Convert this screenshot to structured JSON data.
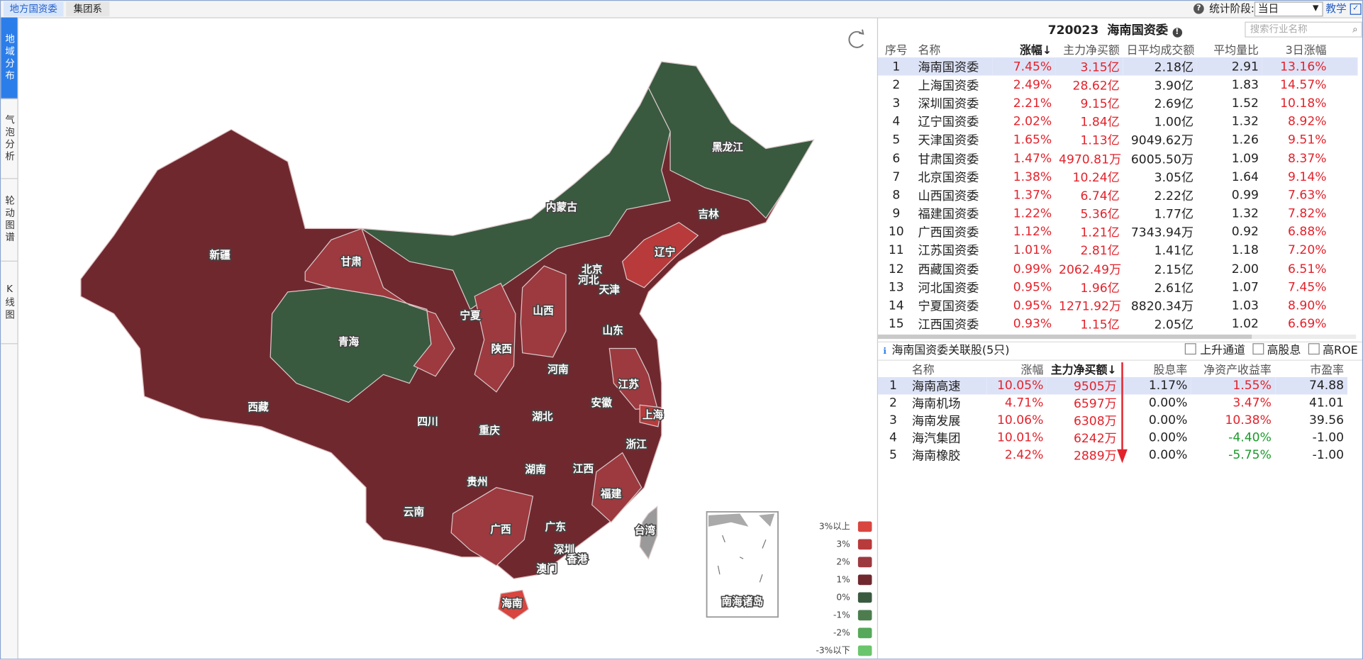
{
  "top_tabs": [
    "地方国资委",
    "集团系"
  ],
  "side_tabs": [
    "地域分布",
    "气泡分析",
    "轮动图谱",
    "K线图"
  ],
  "toolbar": {
    "stat_label": "统计阶段:",
    "stat_value": "当日",
    "teach": "教学"
  },
  "map": {
    "regions": [
      {
        "name": "新疆",
        "color": "#70282f"
      },
      {
        "name": "西藏",
        "color": "#70282f"
      },
      {
        "name": "青海",
        "color": "#3a5a40"
      },
      {
        "name": "甘肃",
        "color": "#9c3a3f"
      },
      {
        "name": "内蒙古",
        "color": "#3a5a40"
      },
      {
        "name": "黑龙江",
        "color": "#3a5a40"
      },
      {
        "name": "吉林",
        "color": "#70282f"
      },
      {
        "name": "辽宁",
        "color": "#b83a3b"
      },
      {
        "name": "北京",
        "color": "#70282f"
      },
      {
        "name": "天津",
        "color": "#70282f"
      },
      {
        "name": "河北",
        "color": "#70282f"
      },
      {
        "name": "山西",
        "color": "#9c3a3f"
      },
      {
        "name": "宁夏",
        "color": "#70282f"
      },
      {
        "name": "陕西",
        "color": "#9c3a3f"
      },
      {
        "name": "山东",
        "color": "#70282f"
      },
      {
        "name": "河南",
        "color": "#70282f"
      },
      {
        "name": "江苏",
        "color": "#9c3a3f"
      },
      {
        "name": "安徽",
        "color": "#70282f"
      },
      {
        "name": "上海",
        "color": "#b83a3b"
      },
      {
        "name": "四川",
        "color": "#70282f"
      },
      {
        "name": "重庆",
        "color": "#70282f"
      },
      {
        "name": "湖北",
        "color": "#70282f"
      },
      {
        "name": "浙江",
        "color": "#70282f"
      },
      {
        "name": "贵州",
        "color": "#70282f"
      },
      {
        "name": "湖南",
        "color": "#70282f"
      },
      {
        "name": "江西",
        "color": "#70282f"
      },
      {
        "name": "福建",
        "color": "#9c3a3f"
      },
      {
        "name": "云南",
        "color": "#70282f"
      },
      {
        "name": "广西",
        "color": "#9c3a3f"
      },
      {
        "name": "广东",
        "color": "#70282f"
      },
      {
        "name": "深圳",
        "color": "#70282f"
      },
      {
        "name": "香港",
        "color": "#70282f"
      },
      {
        "name": "澳门",
        "color": "#70282f"
      },
      {
        "name": "海南",
        "color": "#d9453f"
      },
      {
        "name": "台湾",
        "color": "#9a9a9a"
      }
    ],
    "inset_label": "南海诸岛",
    "legend": [
      {
        "label": "3%以上",
        "color": "#d9453f"
      },
      {
        "label": "3%",
        "color": "#b83a3b"
      },
      {
        "label": "2%",
        "color": "#9c3a3f"
      },
      {
        "label": "1%",
        "color": "#70282f"
      },
      {
        "label": "0%",
        "color": "#3a5a40"
      },
      {
        "label": "-1%",
        "color": "#4d7d4f"
      },
      {
        "label": "-2%",
        "color": "#56a85a"
      },
      {
        "label": "-3%以下",
        "color": "#6bc56c"
      }
    ]
  },
  "ranking": {
    "code": "720023",
    "name": "海南国资委",
    "search_placeholder": "搜索行业名称",
    "columns": [
      "序号",
      "名称",
      "涨幅↓",
      "主力净买额",
      "日平均成交额",
      "平均量比",
      "3日涨幅"
    ],
    "rows": [
      [
        "1",
        "海南国资委",
        "7.45%",
        "3.15亿",
        "2.18亿",
        "2.91",
        "13.16%"
      ],
      [
        "2",
        "上海国资委",
        "2.49%",
        "28.62亿",
        "3.90亿",
        "1.83",
        "14.57%"
      ],
      [
        "3",
        "深圳国资委",
        "2.21%",
        "9.15亿",
        "2.69亿",
        "1.52",
        "10.18%"
      ],
      [
        "4",
        "辽宁国资委",
        "2.02%",
        "1.84亿",
        "1.00亿",
        "1.32",
        "8.92%"
      ],
      [
        "5",
        "天津国资委",
        "1.65%",
        "1.13亿",
        "9049.62万",
        "1.26",
        "9.51%"
      ],
      [
        "6",
        "甘肃国资委",
        "1.47%",
        "4970.81万",
        "6005.50万",
        "1.09",
        "8.37%"
      ],
      [
        "7",
        "北京国资委",
        "1.38%",
        "10.24亿",
        "3.05亿",
        "1.64",
        "9.14%"
      ],
      [
        "8",
        "山西国资委",
        "1.37%",
        "6.74亿",
        "2.22亿",
        "0.99",
        "7.63%"
      ],
      [
        "9",
        "福建国资委",
        "1.22%",
        "5.36亿",
        "1.77亿",
        "1.32",
        "7.82%"
      ],
      [
        "10",
        "广西国资委",
        "1.12%",
        "1.21亿",
        "7343.94万",
        "0.92",
        "6.88%"
      ],
      [
        "11",
        "江苏国资委",
        "1.01%",
        "2.81亿",
        "1.41亿",
        "1.18",
        "7.20%"
      ],
      [
        "12",
        "西藏国资委",
        "0.99%",
        "2062.49万",
        "2.15亿",
        "2.00",
        "6.51%"
      ],
      [
        "13",
        "河北国资委",
        "0.95%",
        "1.96亿",
        "2.61亿",
        "1.07",
        "7.45%"
      ],
      [
        "14",
        "宁夏国资委",
        "0.95%",
        "1271.92万",
        "8820.34万",
        "1.03",
        "8.90%"
      ],
      [
        "15",
        "江西国资委",
        "0.93%",
        "1.15亿",
        "2.05亿",
        "1.02",
        "6.69%"
      ]
    ]
  },
  "related": {
    "title": "海南国资委关联股(5只)",
    "filters": [
      "上升通道",
      "高股息",
      "高ROE"
    ],
    "columns": [
      "名称",
      "涨幅",
      "主力净买额↓",
      "股息率",
      "净资产收益率",
      "市盈率"
    ],
    "rows": [
      [
        "1",
        "海南高速",
        "10.05%",
        "9505万",
        "1.17%",
        "1.55%",
        "74.88"
      ],
      [
        "2",
        "海南机场",
        "4.71%",
        "6597万",
        "0.00%",
        "3.47%",
        "41.01"
      ],
      [
        "3",
        "海南发展",
        "10.06%",
        "6308万",
        "0.00%",
        "10.38%",
        "39.56"
      ],
      [
        "4",
        "海汽集团",
        "10.01%",
        "6242万",
        "0.00%",
        "-4.40%",
        "-1.00"
      ],
      [
        "5",
        "海南橡胶",
        "2.42%",
        "2889万",
        "0.00%",
        "-5.75%",
        "-1.00"
      ]
    ]
  }
}
